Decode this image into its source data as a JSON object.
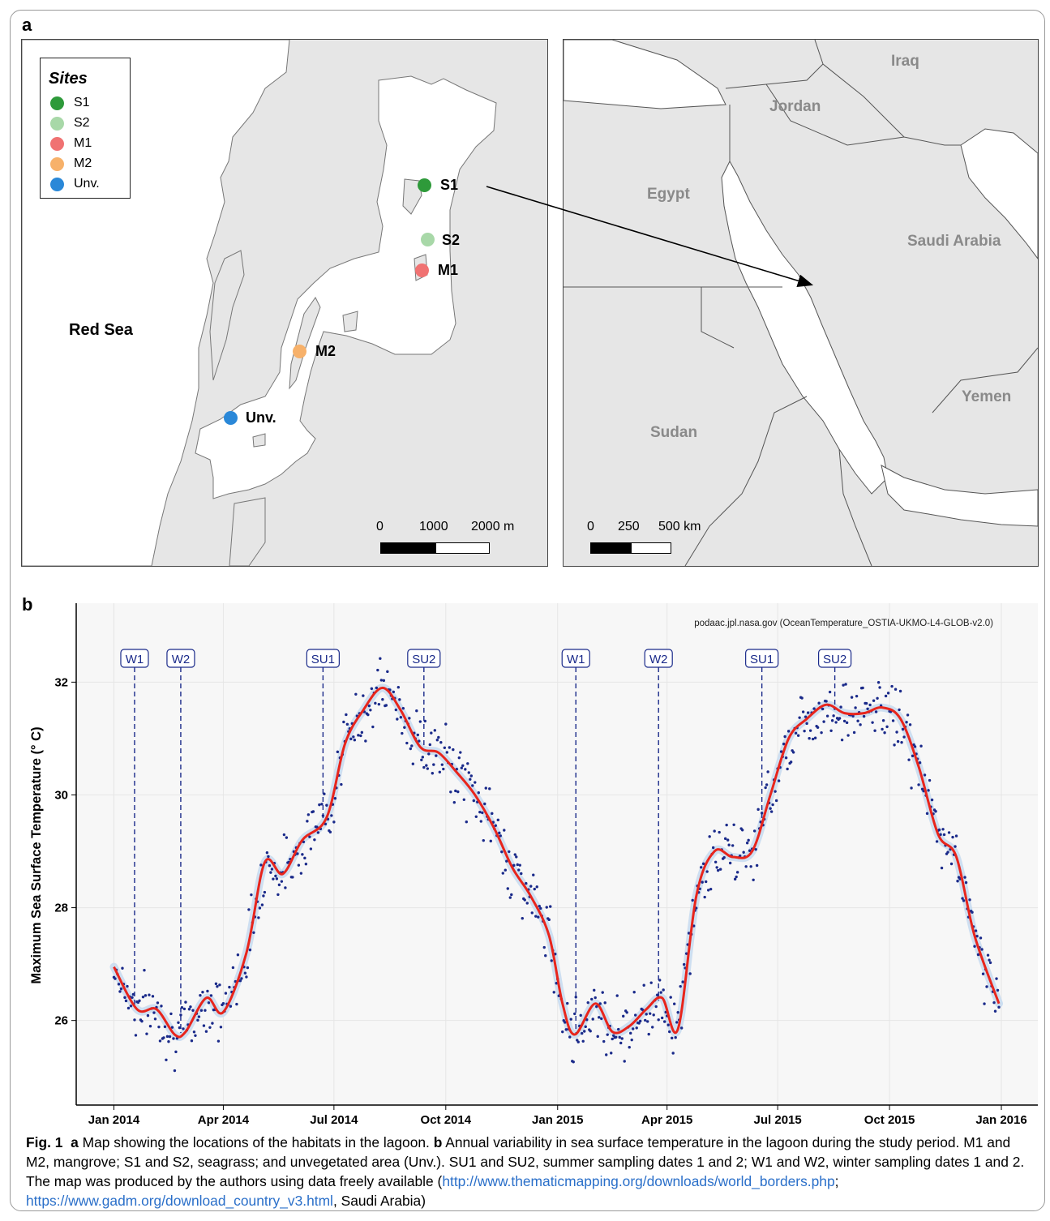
{
  "panel_a": {
    "letter": "a",
    "legend": {
      "title": "Sites",
      "items": [
        {
          "label": "S1",
          "color": "#2e9a3a"
        },
        {
          "label": "S2",
          "color": "#a8d8a8"
        },
        {
          "label": "M1",
          "color": "#f07272"
        },
        {
          "label": "M2",
          "color": "#f7b16a"
        },
        {
          "label": "Unv.",
          "color": "#2a88d8"
        }
      ]
    },
    "sites": [
      {
        "label": "S1",
        "color": "#2e9a3a"
      },
      {
        "label": "S2",
        "color": "#a8d8a8"
      },
      {
        "label": "M1",
        "color": "#f07272"
      },
      {
        "label": "M2",
        "color": "#f7b16a"
      },
      {
        "label": "Unv.",
        "color": "#2a88d8"
      }
    ],
    "sea_label": "Red Sea",
    "scale_left": {
      "labels": [
        "0",
        "1000",
        "2000 m"
      ]
    },
    "scale_right": {
      "labels": [
        "0",
        "250",
        "500 km"
      ]
    },
    "countries": [
      "Iraq",
      "Jordan",
      "Egypt",
      "Saudi Arabia",
      "Yemen",
      "Sudan"
    ]
  },
  "panel_b": {
    "letter": "b",
    "source_note": "podaac.jpl.nasa.gov (OceanTemperature_OSTIA-UKMO-L4-GLOB-v2.0)"
  },
  "chart_data": {
    "type": "line",
    "title": "",
    "xlabel": "",
    "ylabel": "Maximum Sea Surface Temperature (° C)",
    "x_ticks": [
      "Jan 2014",
      "Apr 2014",
      "Jul 2014",
      "Oct 2014",
      "Jan 2015",
      "Apr 2015",
      "Jul 2015",
      "Oct 2015",
      "Jan 2016"
    ],
    "y_ticks": [
      26,
      28,
      30,
      32
    ],
    "ylim": [
      24.5,
      33.4
    ],
    "xlim": [
      "2013-12-01",
      "2016-01-31"
    ],
    "series": [
      {
        "color": "#e8251c",
        "x": [
          "2014-01-01",
          "2014-01-20",
          "2014-02-05",
          "2014-02-20",
          "2014-03-01",
          "2014-03-18",
          "2014-04-01",
          "2014-04-20",
          "2014-05-05",
          "2014-05-20",
          "2014-06-05",
          "2014-06-25",
          "2014-07-10",
          "2014-07-25",
          "2014-08-10",
          "2014-08-25",
          "2014-09-10",
          "2014-09-25",
          "2014-10-10",
          "2014-10-25",
          "2014-11-10",
          "2014-11-25",
          "2014-12-10",
          "2014-12-25",
          "2015-01-05",
          "2015-01-15",
          "2015-02-01",
          "2015-02-15",
          "2015-03-01",
          "2015-03-15",
          "2015-03-28",
          "2015-04-10",
          "2015-04-25",
          "2015-05-10",
          "2015-05-25",
          "2015-06-10",
          "2015-06-25",
          "2015-07-10",
          "2015-07-25",
          "2015-08-10",
          "2015-08-25",
          "2015-09-10",
          "2015-09-25",
          "2015-10-10",
          "2015-10-25",
          "2015-11-10",
          "2015-11-25",
          "2015-12-10",
          "2015-12-30"
        ],
        "values": [
          26.95,
          26.2,
          26.2,
          25.75,
          25.8,
          26.4,
          26.15,
          27.2,
          28.8,
          28.6,
          29.2,
          29.6,
          30.9,
          31.5,
          31.9,
          31.5,
          30.85,
          30.75,
          30.4,
          30.0,
          29.4,
          28.7,
          28.2,
          27.5,
          26.3,
          25.75,
          26.3,
          25.8,
          25.9,
          26.2,
          26.4,
          25.85,
          28.2,
          29.0,
          28.9,
          29.0,
          30.0,
          31.0,
          31.35,
          31.6,
          31.45,
          31.45,
          31.55,
          31.35,
          30.5,
          29.3,
          28.9,
          27.5,
          26.3
        ]
      }
    ],
    "annotations": [
      {
        "label": "W1",
        "date": "2014-01-18"
      },
      {
        "label": "W2",
        "date": "2014-02-25"
      },
      {
        "label": "SU1",
        "date": "2014-06-22"
      },
      {
        "label": "SU2",
        "date": "2014-09-13"
      },
      {
        "label": "W1",
        "date": "2015-01-16"
      },
      {
        "label": "W2",
        "date": "2015-03-25"
      },
      {
        "label": "SU1",
        "date": "2015-06-18"
      },
      {
        "label": "SU2",
        "date": "2015-08-17"
      }
    ],
    "scatter_color": "#1a2a8a",
    "grid": true
  },
  "caption": {
    "fig_label": "Fig. 1",
    "a_label": "a",
    "a_text": " Map showing the locations of the habitats in the lagoon. ",
    "b_label": "b",
    "b_text": " Annual variability in sea surface temperature in the lagoon during the study period. M1 and M2, mangrove; S1 and S2, seagrass; and unvegetated area (Unv.). SU1 and SU2, summer sampling dates 1 and 2; W1 and W2, winter sampling dates 1 and 2. The map was produced by the authors using data freely available (",
    "link1": "http://www.thematicmapping.org/downloads/world_borders.php",
    "sep": "; ",
    "link2": "https://www.gadm.org/download_country_v3.html",
    "tail": ", Saudi Arabia)"
  }
}
